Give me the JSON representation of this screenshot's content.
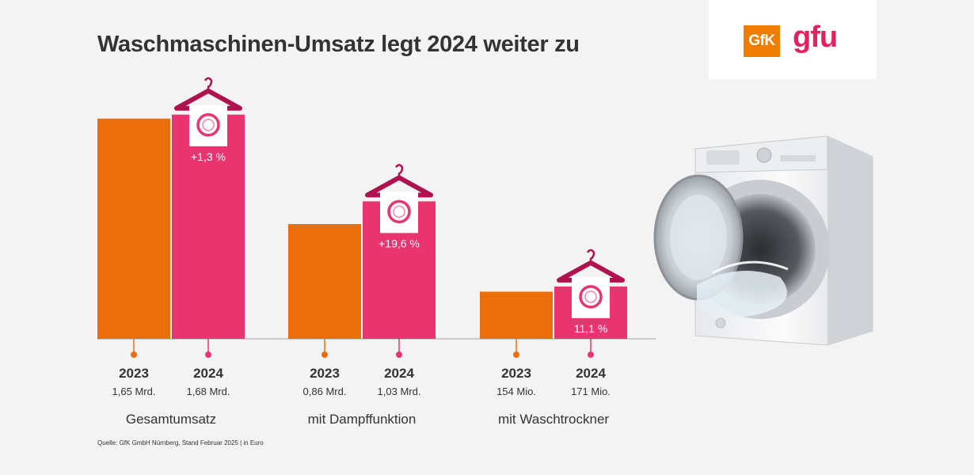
{
  "title": "Waschmaschinen-Umsatz legt 2024 weiter zu",
  "logos": {
    "gfk": "GfK",
    "gfu": "gfu"
  },
  "source": "Quelle: GfK GmbH Nürnberg, Stand Februar 2025 | in Euro",
  "colors": {
    "y2023": "#ee6d0b",
    "y2024": "#e9346f",
    "hanger": "#b0114f"
  },
  "chart_data": {
    "type": "bar",
    "title": "Waschmaschinen-Umsatz legt 2024 weiter zu",
    "categories": [
      "Gesamtumsatz",
      "mit Dampffunktion",
      "mit Waschtrockner"
    ],
    "groups": [
      {
        "name": "Gesamtumsatz",
        "v2023": 1650,
        "v2024": 1680,
        "l2023": "1,65 Mrd.",
        "l2024": "1,68 Mrd.",
        "change": "+1,3 %",
        "scale": 0.1686
      },
      {
        "name": "mit Dampffunktion",
        "v2023": 860,
        "v2024": 1030,
        "l2023": "0,86 Mrd.",
        "l2024": "1,03 Mrd.",
        "change": "+19,6 %",
        "scale": 0.1686
      },
      {
        "name": "mit Waschtrockner",
        "v2023": 154,
        "v2024": 171,
        "l2023": "154 Mio.",
        "l2024": "171 Mio.",
        "change": "11,1 %",
        "scale": 0.3867
      }
    ],
    "series": [
      {
        "name": "2023",
        "values": [
          1650,
          860,
          154
        ]
      },
      {
        "name": "2024",
        "values": [
          1680,
          1030,
          171
        ]
      }
    ],
    "units": "Mio. Euro"
  }
}
